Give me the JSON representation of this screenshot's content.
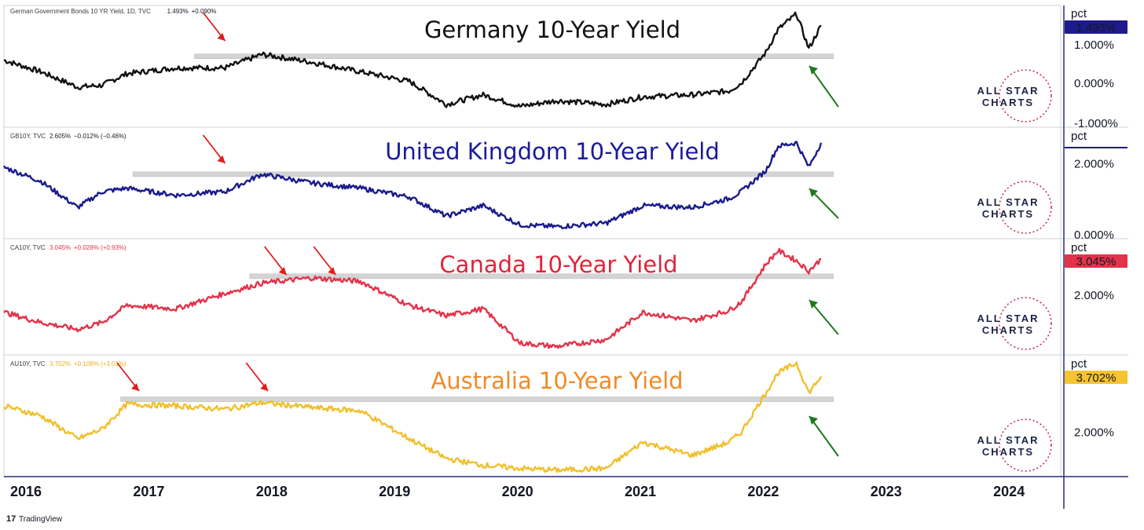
{
  "chart_data": [
    {
      "type": "line",
      "title": "Germany 10-Year Yield",
      "legend": "German Government Bonds 10 YR Yield, 1D, TVC",
      "legend_value": "1.493%",
      "legend_change": "+0.090%",
      "unit_label": "pct",
      "ticks": [
        "1.000%",
        "0.000%",
        "-1.000%"
      ],
      "last_value_label": "1.493%",
      "color": "#111111",
      "tag_color": "#1e1b8c",
      "resistance": 0.7,
      "ylim": [
        -1.1,
        2.0
      ],
      "x": [
        2016.0,
        2016.3,
        2016.6,
        2016.8,
        2017.0,
        2017.4,
        2017.8,
        2018.1,
        2018.5,
        2018.9,
        2019.3,
        2019.6,
        2019.9,
        2020.2,
        2020.5,
        2020.9,
        2021.2,
        2021.6,
        2021.9,
        2022.0,
        2022.2,
        2022.3,
        2022.45,
        2022.55,
        2022.65
      ],
      "y": [
        0.6,
        0.3,
        -0.1,
        -0.05,
        0.25,
        0.4,
        0.4,
        0.75,
        0.55,
        0.3,
        0.05,
        -0.55,
        -0.3,
        -0.6,
        -0.45,
        -0.55,
        -0.35,
        -0.3,
        -0.2,
        0.0,
        0.8,
        1.4,
        1.8,
        0.9,
        1.5
      ]
    },
    {
      "type": "line",
      "title": "United Kingdom 10-Year Yield",
      "legend": "GB10Y, TVC",
      "legend_value": "2.605%",
      "legend_change": "−0.012% (−0.46%)",
      "unit_label": "pct",
      "ticks": [
        "2.000%",
        "0.000%"
      ],
      "last_value_label": "",
      "color": "#1a1a8c",
      "tag_color": "#1e1b8c",
      "resistance": 1.7,
      "ylim": [
        -0.1,
        3.0
      ],
      "x": [
        2016.0,
        2016.3,
        2016.6,
        2016.8,
        2017.0,
        2017.4,
        2017.8,
        2018.1,
        2018.5,
        2018.9,
        2019.3,
        2019.6,
        2019.9,
        2020.2,
        2020.5,
        2020.9,
        2021.2,
        2021.6,
        2021.9,
        2022.0,
        2022.2,
        2022.3,
        2022.45,
        2022.55,
        2022.65
      ],
      "y": [
        1.9,
        1.5,
        0.75,
        1.2,
        1.3,
        1.1,
        1.2,
        1.7,
        1.45,
        1.3,
        1.05,
        0.5,
        0.8,
        0.25,
        0.2,
        0.3,
        0.8,
        0.75,
        1.0,
        1.2,
        1.8,
        2.5,
        2.6,
        1.9,
        2.6
      ]
    },
    {
      "type": "line",
      "title": "Canada 10-Year Yield",
      "legend": "CA10Y, TVC",
      "legend_value": "3.045%",
      "legend_change": "+0.028% (+0.93%)",
      "unit_label": "pct",
      "ticks": [
        "2.000%"
      ],
      "last_value_label": "3.045%",
      "color": "#e2334a",
      "tag_color": "#e2334a",
      "resistance": 2.55,
      "ylim": [
        0.3,
        3.6
      ],
      "x": [
        2016.0,
        2016.3,
        2016.6,
        2016.8,
        2017.0,
        2017.4,
        2017.8,
        2018.1,
        2018.5,
        2018.9,
        2019.3,
        2019.6,
        2019.9,
        2020.2,
        2020.5,
        2020.9,
        2021.2,
        2021.6,
        2021.9,
        2022.0,
        2022.2,
        2022.3,
        2022.45,
        2022.55,
        2022.65
      ],
      "y": [
        1.5,
        1.2,
        1.0,
        1.2,
        1.7,
        1.6,
        2.05,
        2.35,
        2.5,
        2.4,
        1.7,
        1.4,
        1.6,
        0.6,
        0.5,
        0.7,
        1.5,
        1.25,
        1.55,
        1.8,
        2.9,
        3.3,
        3.0,
        2.7,
        3.05
      ]
    },
    {
      "type": "line",
      "title": "Australia 10-Year Yield",
      "legend": "AU10Y, TVC",
      "legend_value": "3.702%",
      "legend_change": "+0.108% (+3.01%)",
      "unit_label": "pct",
      "ticks": [
        "2.000%"
      ],
      "last_value_label": "3.702%",
      "color": "#f0c02c",
      "tag_color": "#f6c331",
      "resistance": 3.0,
      "ylim": [
        0.7,
        4.3
      ],
      "x": [
        2016.0,
        2016.3,
        2016.6,
        2016.8,
        2017.0,
        2017.4,
        2017.8,
        2018.1,
        2018.5,
        2018.9,
        2019.3,
        2019.6,
        2019.9,
        2020.2,
        2020.5,
        2020.9,
        2021.2,
        2021.6,
        2021.9,
        2022.0,
        2022.2,
        2022.3,
        2022.45,
        2022.55,
        2022.65
      ],
      "y": [
        2.8,
        2.5,
        1.8,
        2.1,
        2.85,
        2.8,
        2.7,
        2.9,
        2.75,
        2.65,
        1.8,
        1.2,
        1.0,
        0.9,
        0.85,
        0.9,
        1.7,
        1.3,
        1.7,
        2.0,
        3.2,
        3.8,
        4.1,
        3.2,
        3.7
      ]
    }
  ],
  "x_axis": {
    "labels": [
      "2016",
      "2017",
      "2018",
      "2019",
      "2020",
      "2021",
      "2022",
      "2023",
      "2024"
    ],
    "positions": [
      2016,
      2017,
      2018,
      2019,
      2020,
      2021,
      2022,
      2023,
      2024
    ],
    "range": [
      2016.0,
      2024.6
    ]
  },
  "logo": {
    "line1": "ALL STAR",
    "line2": "CHARTS"
  },
  "footer": {
    "brand": "TradingView"
  },
  "colors": {
    "red_arrow": "#e01d1d",
    "green_arrow": "#1e7a1e",
    "resistance": "#c8c8c8",
    "panel_border": "#d0d3db",
    "axis_border": "#2a2e7a"
  },
  "icons": {
    "red_arrow": "arrow-down-right-icon",
    "green_arrow": "arrow-up-left-icon",
    "logo": "all-star-charts-logo",
    "brand": "tradingview-logo-icon"
  }
}
